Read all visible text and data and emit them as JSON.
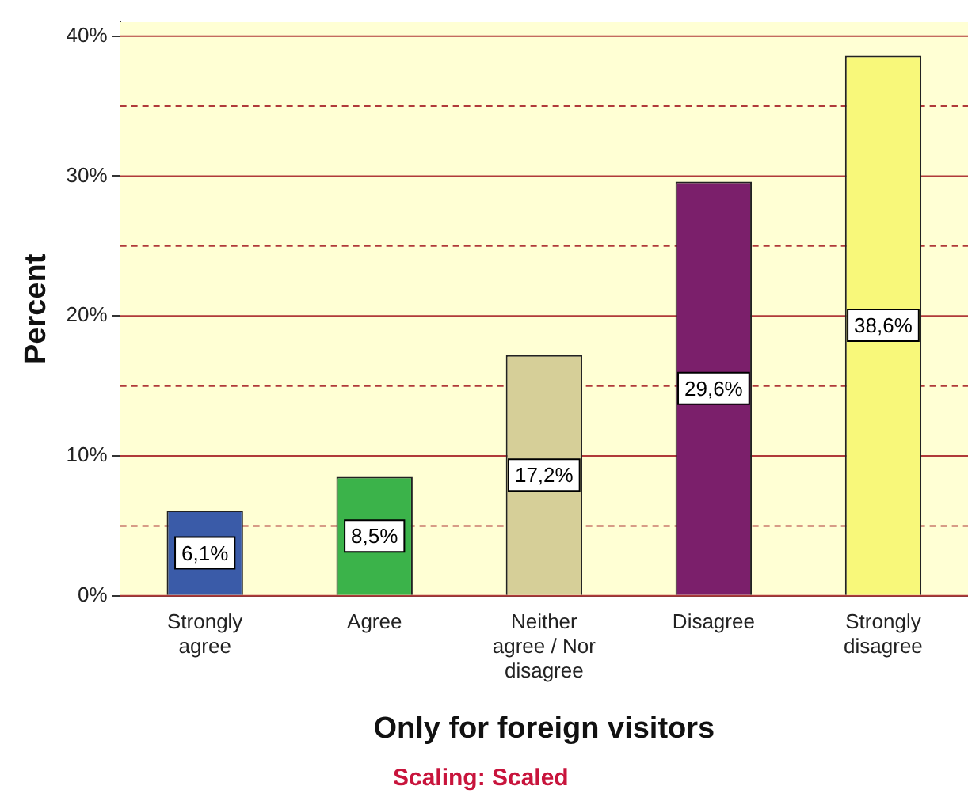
{
  "chart_data": {
    "type": "bar",
    "xlabel": "Only for foreign visitors",
    "ylabel": "Percent",
    "categories": [
      "Strongly agree",
      "Agree",
      "Neither agree / Nor disagree",
      "Disagree",
      "Strongly disagree"
    ],
    "values": [
      6.1,
      8.5,
      17.2,
      29.6,
      38.6
    ],
    "colors": [
      "#3a5ba8",
      "#3bb34a",
      "#d6cf98",
      "#7b1f6b",
      "#f8f87a"
    ],
    "value_labels": [
      "6,1%",
      "8,5%",
      "17,2%",
      "29,6%",
      "38,6%"
    ],
    "ylim": [
      0,
      41
    ],
    "yticks": [
      {
        "value": 0,
        "label": "0%"
      },
      {
        "value": 5,
        "label": null
      },
      {
        "value": 10,
        "label": "10%"
      },
      {
        "value": 15,
        "label": null
      },
      {
        "value": 20,
        "label": "20%"
      },
      {
        "value": 25,
        "label": null
      },
      {
        "value": 30,
        "label": "30%"
      },
      {
        "value": 35,
        "label": null
      },
      {
        "value": 40,
        "label": "40%"
      }
    ],
    "grid": "y",
    "legend": false,
    "annotations": [
      "Scaling: Scaled"
    ]
  }
}
